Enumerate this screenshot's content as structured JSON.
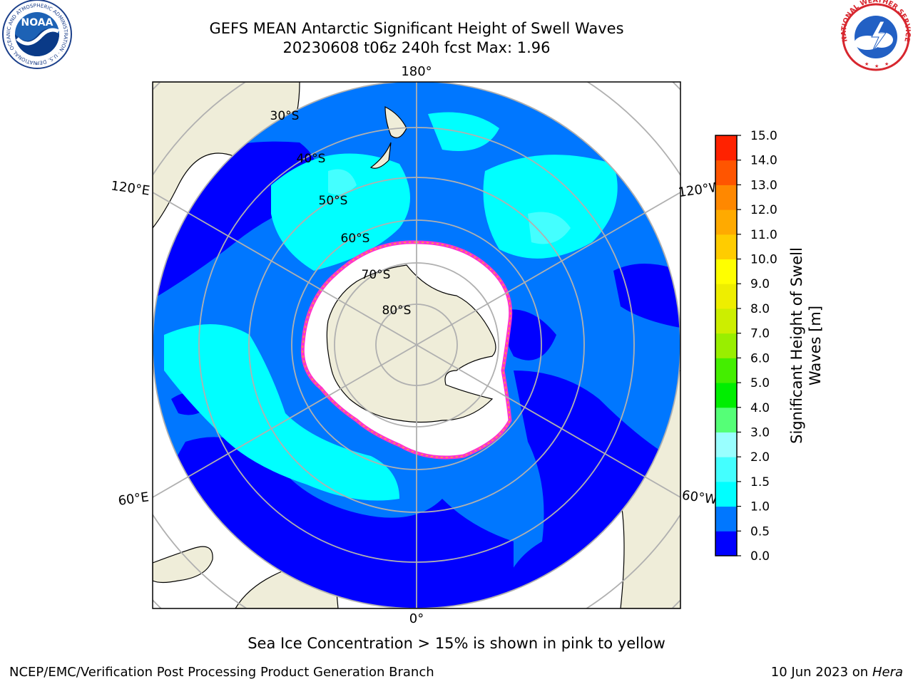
{
  "header": {
    "title_line1": "GEFS MEAN Antarctic Significant Height of Swell Waves",
    "title_line2": "20230608 t06z 240h fcst   Max: 1.96"
  },
  "logos": {
    "noaa_text": "NOAA",
    "noaa_ring_text": "NATIONAL OCEANIC AND ATMOSPHERIC ADMINISTRATION · U.S. DEPARTMENT OF COMMERCE",
    "nws_ring_text": "NATIONAL WEATHER SERVICE"
  },
  "map": {
    "projection": "south-polar-stereographic",
    "longitude_labels": {
      "top": "180°",
      "bottom": "0°",
      "left_upper": "120°E",
      "left_lower": "60°E",
      "right_upper": "120°W",
      "right_lower": "60°W"
    },
    "latitude_labels": [
      "30°S",
      "40°S",
      "50°S",
      "60°S",
      "70°S",
      "80°S"
    ],
    "colors": {
      "land": "#efedd9",
      "open_ocean_cap": "#ffffff",
      "sea_ice_edge": "#ff33cc",
      "sea_ice_fringe": "#ffaa33"
    }
  },
  "colorbar": {
    "label_line1": "Significant Height of Swell",
    "label_line2": "Waves [m]",
    "ticks": [
      "0.0",
      "0.5",
      "1.0",
      "1.5",
      "2.0",
      "3.0",
      "4.0",
      "5.0",
      "6.0",
      "7.0",
      "8.0",
      "9.0",
      "10.0",
      "11.0",
      "12.0",
      "13.0",
      "14.0",
      "15.0"
    ],
    "colors": [
      "#0000ff",
      "#0077ff",
      "#00ffff",
      "#44ffff",
      "#99ffff",
      "#55ff77",
      "#00ee00",
      "#44ee00",
      "#99ee00",
      "#ccee00",
      "#eeee00",
      "#ffff00",
      "#ffcc00",
      "#ffaa00",
      "#ff8800",
      "#ff5500",
      "#ff2200"
    ]
  },
  "chart_data": {
    "type": "heatmap",
    "title": "GEFS MEAN Antarctic Significant Height of Swell Waves",
    "subtitle": "20230608 t06z 240h fcst   Max: 1.96",
    "variable": "Significant Height of Swell Waves [m]",
    "colorbar_bounds": [
      0.0,
      0.5,
      1.0,
      1.5,
      2.0,
      3.0,
      4.0,
      5.0,
      6.0,
      7.0,
      8.0,
      9.0,
      10.0,
      11.0,
      12.0,
      13.0,
      14.0,
      15.0
    ],
    "max_value": 1.96,
    "note": "Sea Ice Concentration > 15% is shown in pink to yellow"
  },
  "footer": {
    "note": "Sea Ice Concentration > 15% is shown in pink to yellow",
    "credit": "NCEP/EMC/Verification Post Processing Product Generation Branch",
    "date": "10 Jun 2023 on",
    "machine": "Hera"
  }
}
